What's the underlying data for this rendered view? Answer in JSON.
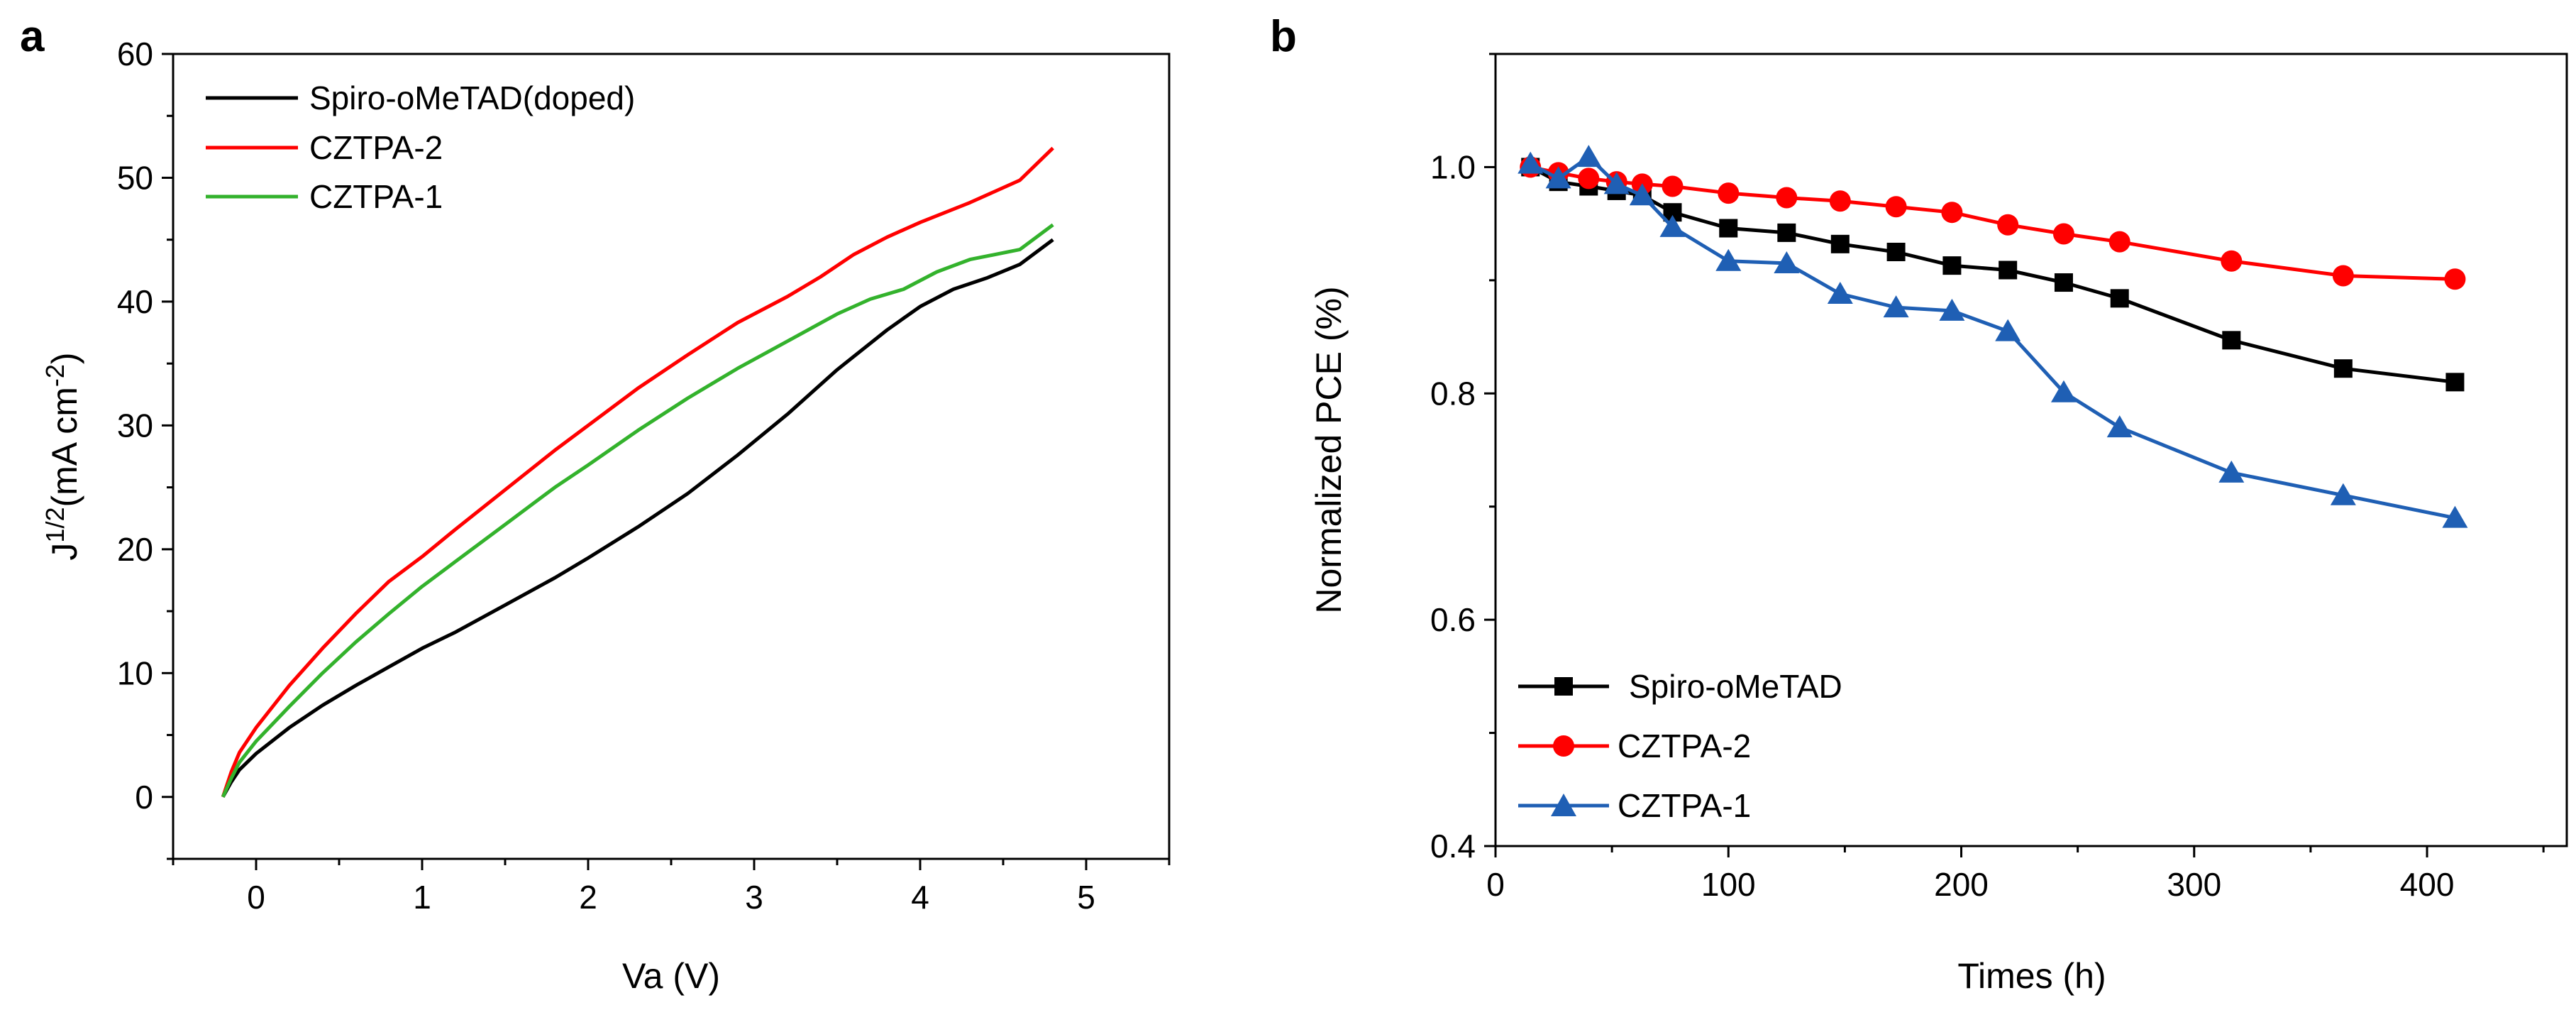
{
  "chart_data": [
    {
      "panel_label": "a",
      "type": "line",
      "title": "",
      "xlabel": "Va (V)",
      "ylabel_base": "J",
      "ylabel_sup1": "1/2",
      "ylabel_unit": "(mA cm",
      "ylabel_sup2": "-2",
      "ylabel_close": ")",
      "xlim": [
        -0.5,
        5.5
      ],
      "ylim": [
        -5,
        60
      ],
      "xticks": [
        0,
        1,
        2,
        3,
        4,
        5
      ],
      "yticks": [
        0,
        10,
        20,
        30,
        40,
        50,
        60
      ],
      "legend_position": "top-left",
      "series": [
        {
          "name": "Spiro-oMeTAD(doped)",
          "color": "#000000",
          "x": [
            -0.2,
            -0.15,
            -0.1,
            0,
            0.2,
            0.4,
            0.6,
            0.8,
            1.0,
            1.2,
            1.5,
            1.8,
            2.0,
            2.3,
            2.6,
            2.9,
            3.2,
            3.5,
            3.8,
            4.0,
            4.2,
            4.4,
            4.6,
            4.8
          ],
          "y": [
            0,
            1.2,
            2.2,
            3.5,
            5.6,
            7.4,
            9.0,
            10.5,
            12.0,
            13.3,
            15.5,
            17.7,
            19.3,
            21.8,
            24.5,
            27.6,
            30.9,
            34.5,
            37.7,
            39.6,
            41.0,
            41.9,
            43.0,
            45.0
          ]
        },
        {
          "name": "CZTPA-2",
          "color": "#ff0000",
          "x": [
            -0.2,
            -0.15,
            -0.1,
            0,
            0.2,
            0.4,
            0.6,
            0.8,
            1.0,
            1.2,
            1.5,
            1.8,
            2.0,
            2.3,
            2.6,
            2.9,
            3.2,
            3.4,
            3.6,
            3.8,
            4.0,
            4.3,
            4.6,
            4.8
          ],
          "y": [
            0,
            2.0,
            3.6,
            5.6,
            9.0,
            12.0,
            14.8,
            17.4,
            19.4,
            21.6,
            24.8,
            28.0,
            30.0,
            33.0,
            35.7,
            38.3,
            40.4,
            42.0,
            43.8,
            45.2,
            46.4,
            48.0,
            49.8,
            52.4
          ]
        },
        {
          "name": "CZTPA-1",
          "color": "#33b22c",
          "x": [
            -0.2,
            -0.15,
            -0.1,
            0,
            0.2,
            0.4,
            0.6,
            0.8,
            1.0,
            1.2,
            1.5,
            1.8,
            2.0,
            2.3,
            2.6,
            2.9,
            3.2,
            3.5,
            3.7,
            3.9,
            4.1,
            4.3,
            4.6,
            4.8
          ],
          "y": [
            0,
            1.5,
            2.8,
            4.5,
            7.3,
            10.0,
            12.5,
            14.8,
            17.0,
            19.0,
            22.0,
            25.0,
            26.8,
            29.6,
            32.2,
            34.6,
            36.8,
            39.0,
            40.2,
            41.0,
            42.4,
            43.4,
            44.2,
            46.2
          ]
        }
      ]
    },
    {
      "panel_label": "b",
      "type": "line",
      "title": "",
      "xlabel": "Times (h)",
      "ylabel": "Normalized PCE (%)",
      "xlim": [
        0,
        460
      ],
      "ylim": [
        0.4,
        1.1
      ],
      "xticks": [
        0,
        100,
        200,
        300,
        400
      ],
      "yticks": [
        0.4,
        0.6,
        0.8,
        1.0
      ],
      "ytick_labels": [
        "0.4",
        "0.6",
        "0.8",
        "1.0"
      ],
      "legend_position": "bottom-left",
      "series": [
        {
          "name": "Spiro-oMeTAD",
          "color": "#000000",
          "marker": "square",
          "x": [
            15,
            27,
            40,
            52,
            63,
            76,
            100,
            125,
            148,
            172,
            196,
            220,
            244,
            268,
            316,
            364,
            412
          ],
          "y": [
            1.0,
            0.987,
            0.983,
            0.979,
            0.975,
            0.96,
            0.946,
            0.942,
            0.932,
            0.925,
            0.913,
            0.909,
            0.898,
            0.884,
            0.847,
            0.822,
            0.81
          ]
        },
        {
          "name": "CZTPA-2",
          "color": "#ff0000",
          "marker": "circle",
          "x": [
            15,
            27,
            40,
            52,
            63,
            76,
            100,
            125,
            148,
            172,
            196,
            220,
            244,
            268,
            316,
            364,
            412
          ],
          "y": [
            1.0,
            0.995,
            0.99,
            0.987,
            0.985,
            0.983,
            0.977,
            0.973,
            0.97,
            0.965,
            0.96,
            0.949,
            0.941,
            0.934,
            0.917,
            0.904,
            0.901
          ]
        },
        {
          "name": "CZTPA-1",
          "color": "#1f5fb4",
          "marker": "triangle",
          "x": [
            15,
            27,
            40,
            52,
            63,
            76,
            100,
            125,
            148,
            172,
            196,
            220,
            244,
            268,
            316,
            364,
            412
          ],
          "y": [
            1.003,
            0.99,
            1.009,
            0.985,
            0.975,
            0.947,
            0.917,
            0.915,
            0.888,
            0.876,
            0.873,
            0.855,
            0.801,
            0.77,
            0.73,
            0.71,
            0.69
          ]
        }
      ]
    }
  ]
}
